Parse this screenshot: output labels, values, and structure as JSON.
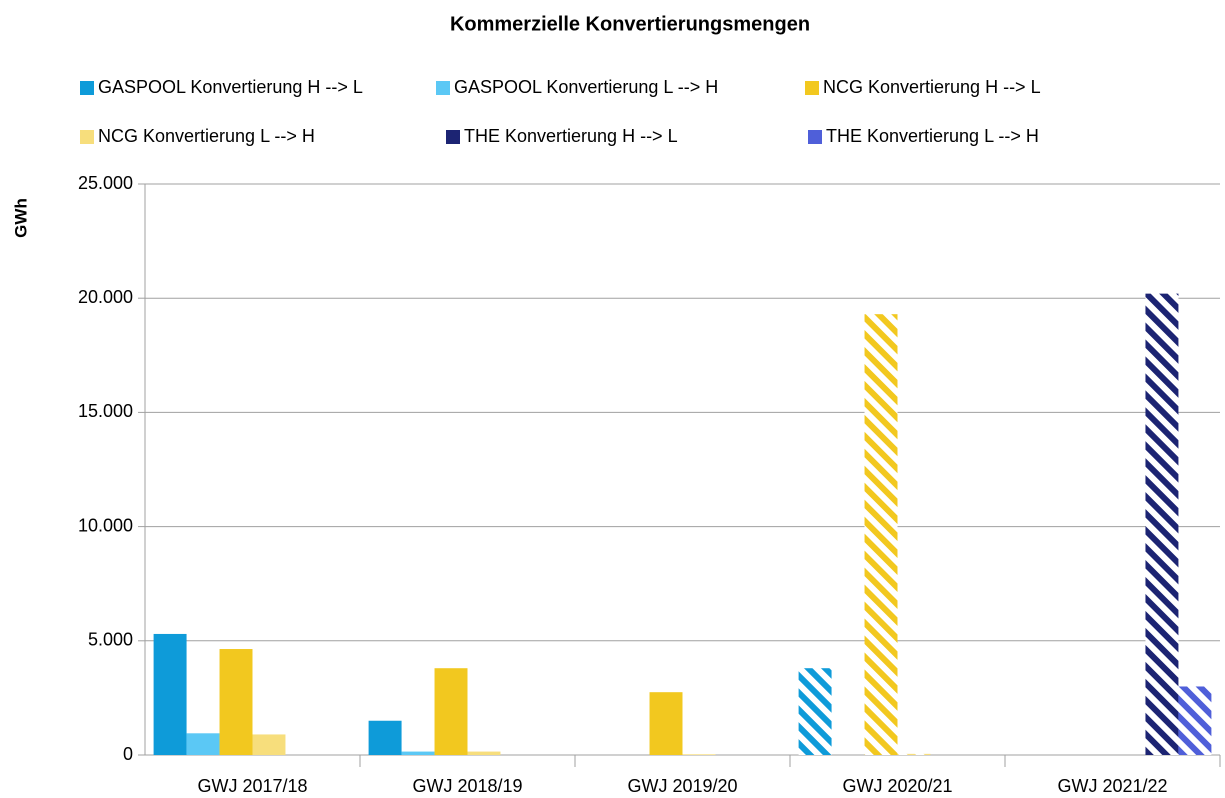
{
  "chart_data": {
    "type": "bar",
    "title": "Kommerzielle Konvertierungsmengen",
    "y_label": "GWh",
    "categories": [
      "GWJ 2017/18",
      "GWJ 2018/19",
      "GWJ 2019/20",
      "GWJ 2020/21",
      "GWJ 2021/22"
    ],
    "series": [
      {
        "name": "GASPOOL Konvertierung H --> L",
        "color": "#0e9bd9",
        "values": [
          5300,
          1500,
          0,
          3800,
          0
        ]
      },
      {
        "name": "GASPOOL Konvertierung L --> H",
        "color": "#5bc8f5",
        "values": [
          950,
          150,
          0,
          0,
          0
        ]
      },
      {
        "name": "NCG Konvertierung H --> L",
        "color": "#f2c81f",
        "values": [
          4640,
          3800,
          2750,
          19300,
          0
        ]
      },
      {
        "name": "NCG Konvertierung L --> H",
        "color": "#f7de7c",
        "values": [
          900,
          150,
          30,
          50,
          0
        ]
      },
      {
        "name": "THE Konvertierung H --> L",
        "color": "#1c2473",
        "values": [
          0,
          0,
          0,
          0,
          20200
        ]
      },
      {
        "name": "THE Konvertierung L --> H",
        "color": "#4f5fd9",
        "values": [
          0,
          0,
          0,
          0,
          3000
        ]
      }
    ],
    "hatched": [
      false,
      false,
      false,
      true,
      true
    ],
    "ylim": [
      0,
      25000
    ],
    "yticks": [
      0,
      {
        "value": 5000,
        "label": "5.000"
      },
      {
        "value": 10000,
        "label": "10.000"
      },
      {
        "value": 15000,
        "label": "15.000"
      },
      {
        "value": 20000,
        "label": "20.000"
      },
      {
        "value": 25000,
        "label": "25.000"
      }
    ],
    "grid": true,
    "legend": "top"
  }
}
